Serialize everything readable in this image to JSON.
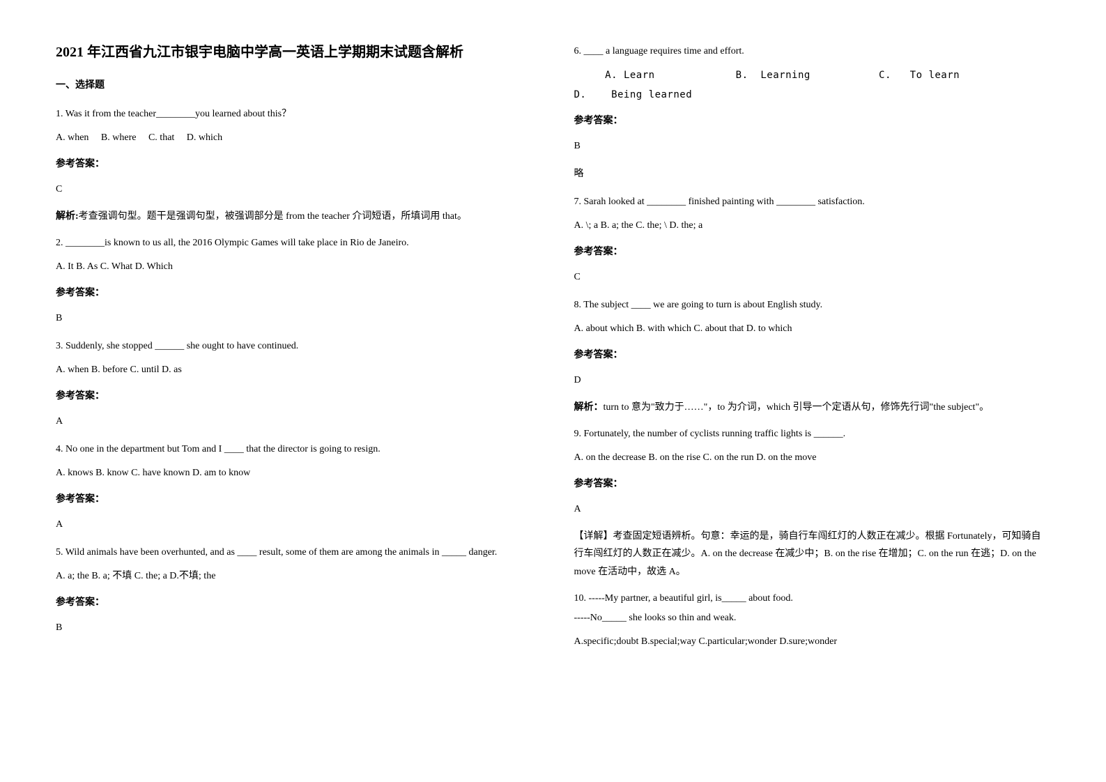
{
  "title": "2021 年江西省九江市银宇电脑中学高一英语上学期期末试题含解析",
  "section_heading": "一、选择题",
  "left_column": {
    "q1": {
      "text": "1. Was it from the teacher________you learned about this？",
      "options": "A. when　 B. where 　C. that　 D. which",
      "answer_label": "参考答案：",
      "answer": "C",
      "explanation_label": "解析:",
      "explanation": "考查强调句型。题干是强调句型，被强调部分是 from the teacher 介词短语，所填词用 that。"
    },
    "q2": {
      "text": "2. ________is known to us all, the 2016 Olympic Games will take place in Rio de Janeiro.",
      "options": "A. It      B. As   C.       What    D. Which",
      "answer_label": "参考答案：",
      "answer": "B"
    },
    "q3": {
      "text": "3. Suddenly, she stopped ______ she ought to have continued.",
      "options": "A. when    B. before     C. until    D. as",
      "answer_label": "参考答案：",
      "answer": "A"
    },
    "q4": {
      "text": "4. No one in the department but Tom and I  ____ that the director is going to resign.",
      "options": "A. knows          B. know           C. have known D. am to know",
      "answer_label": "参考答案：",
      "answer": "A"
    },
    "q5": {
      "text": "5. Wild animals have been overhunted, and as ____ result, some of them are among the animals in _____ danger.",
      "options": "A. a; the    B. a; 不填      C. the; a     D.不填; the",
      "answer_label": "参考答案：",
      "answer": "B"
    }
  },
  "right_column": {
    "q6": {
      "text": "6. ____ a language requires time and effort.",
      "options": "     A. Learn             B.  Learning           C.   To learn             D.    Being learned",
      "answer_label": "参考答案：",
      "answer": "B",
      "note": "略"
    },
    "q7": {
      "text": "7. Sarah looked at ________ finished painting with ________ satisfaction.",
      "options": "A. \\; a    B. a; the        C. the; \\       D. the; a",
      "answer_label": "参考答案：",
      "answer": "C"
    },
    "q8": {
      "text": "8. The subject ____ we are going to turn is about English study.",
      "options": "    A. about which    B. with which     C. about that     D. to which",
      "answer_label": "参考答案：",
      "answer": "D",
      "explanation_label": "解析：",
      "explanation": "turn to 意为\"致力于……\"，to 为介词，which 引导一个定语从句，修饰先行词\"the subject\"。"
    },
    "q9": {
      "text": "9. Fortunately, the number of cyclists running traffic lights is ______.",
      "options": "A. on the decrease    B. on the rise    C. on the run    D. on the move",
      "answer_label": "参考答案：",
      "answer": "A",
      "explanation": "【详解】考查固定短语辨析。句意：幸运的是，骑自行车闯红灯的人数正在减少。根据 Fortunately，可知骑自行车闯红灯的人数正在减少。A. on the decrease 在减少中；B. on the rise 在增加；C. on the run 在逃；D. on the move 在活动中，故选 A。"
    },
    "q10": {
      "text1": "10. -----My partner, a beautiful girl, is_____ about food.",
      "text2": "   -----No_____ she looks so thin and weak.",
      "options": "A.specific;doubt   B.special;way   C.particular;wonder   D.sure;wonder"
    }
  }
}
